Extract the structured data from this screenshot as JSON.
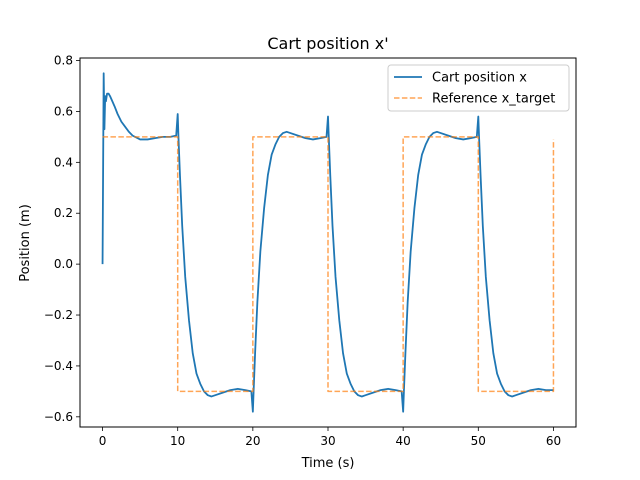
{
  "chart_data": {
    "type": "line",
    "title": "Cart position x'",
    "xlabel": "Time (s)",
    "ylabel": "Position (m)",
    "xlim": [
      -3,
      63
    ],
    "ylim": [
      -0.64,
      0.81
    ],
    "xticks": [
      0,
      10,
      20,
      30,
      40,
      50,
      60
    ],
    "xtick_labels": [
      "0",
      "10",
      "20",
      "30",
      "40",
      "50",
      "60"
    ],
    "yticks": [
      -0.6,
      -0.4,
      -0.2,
      0.0,
      0.2,
      0.4,
      0.6,
      0.8
    ],
    "ytick_labels": [
      "−0.6",
      "−0.4",
      "−0.2",
      "0.0",
      "0.2",
      "0.4",
      "0.6",
      "0.8"
    ],
    "grid": false,
    "legend_position": "top-right",
    "series": [
      {
        "name": "Cart position x",
        "color": "#1f77b4",
        "style": "solid",
        "x": [
          0,
          0.08,
          0.15,
          0.25,
          0.35,
          0.45,
          0.6,
          0.8,
          1.0,
          1.3,
          1.6,
          2.0,
          2.5,
          3.0,
          3.5,
          4.0,
          5.0,
          6.0,
          7.0,
          8.0,
          9.0,
          9.8,
          10.0,
          10.1,
          10.3,
          10.6,
          11.0,
          11.5,
          12.0,
          12.5,
          13.0,
          13.5,
          14.0,
          14.5,
          15.0,
          16.0,
          17.0,
          18.0,
          19.0,
          19.8,
          20.0,
          20.1,
          20.3,
          20.6,
          21.0,
          21.5,
          22.0,
          22.5,
          23.0,
          23.5,
          24.0,
          24.5,
          25.0,
          26.0,
          27.0,
          28.0,
          29.0,
          29.8,
          30.0,
          30.1,
          30.3,
          30.6,
          31.0,
          31.5,
          32.0,
          32.5,
          33.0,
          33.5,
          34.0,
          34.5,
          35.0,
          36.0,
          37.0,
          38.0,
          39.0,
          39.8,
          40.0,
          40.1,
          40.3,
          40.6,
          41.0,
          41.5,
          42.0,
          42.5,
          43.0,
          43.5,
          44.0,
          44.5,
          45.0,
          46.0,
          47.0,
          48.0,
          49.0,
          49.8,
          50.0,
          50.1,
          50.3,
          50.6,
          51.0,
          51.5,
          52.0,
          52.5,
          53.0,
          53.5,
          54.0,
          54.5,
          55.0,
          56.0,
          57.0,
          58.0,
          59.0,
          60.0
        ],
        "y": [
          0.0,
          0.4,
          0.75,
          0.53,
          0.66,
          0.64,
          0.67,
          0.67,
          0.66,
          0.64,
          0.62,
          0.59,
          0.56,
          0.54,
          0.52,
          0.505,
          0.49,
          0.49,
          0.495,
          0.5,
          0.5,
          0.505,
          0.59,
          0.5,
          0.35,
          0.15,
          -0.05,
          -0.22,
          -0.35,
          -0.43,
          -0.47,
          -0.5,
          -0.515,
          -0.52,
          -0.515,
          -0.505,
          -0.495,
          -0.49,
          -0.495,
          -0.5,
          -0.58,
          -0.5,
          -0.35,
          -0.15,
          0.05,
          0.22,
          0.35,
          0.43,
          0.47,
          0.5,
          0.515,
          0.52,
          0.515,
          0.505,
          0.495,
          0.49,
          0.495,
          0.5,
          0.58,
          0.5,
          0.35,
          0.15,
          -0.05,
          -0.22,
          -0.35,
          -0.43,
          -0.47,
          -0.5,
          -0.515,
          -0.52,
          -0.515,
          -0.505,
          -0.495,
          -0.49,
          -0.495,
          -0.5,
          -0.58,
          -0.5,
          -0.35,
          -0.15,
          0.05,
          0.22,
          0.35,
          0.43,
          0.47,
          0.5,
          0.515,
          0.52,
          0.515,
          0.505,
          0.495,
          0.49,
          0.495,
          0.5,
          0.58,
          0.5,
          0.35,
          0.15,
          -0.05,
          -0.22,
          -0.35,
          -0.43,
          -0.47,
          -0.5,
          -0.515,
          -0.52,
          -0.515,
          -0.505,
          -0.495,
          -0.49,
          -0.495,
          -0.495
        ]
      },
      {
        "name": "Reference x_target",
        "color": "#ff7f0e",
        "style": "dashed",
        "x": [
          0,
          10,
          10,
          20,
          20,
          30,
          30,
          40,
          40,
          50,
          50,
          60,
          60
        ],
        "y": [
          0.5,
          0.5,
          -0.5,
          -0.5,
          0.5,
          0.5,
          -0.5,
          -0.5,
          0.5,
          0.5,
          -0.5,
          -0.5,
          0.49
        ]
      }
    ]
  }
}
